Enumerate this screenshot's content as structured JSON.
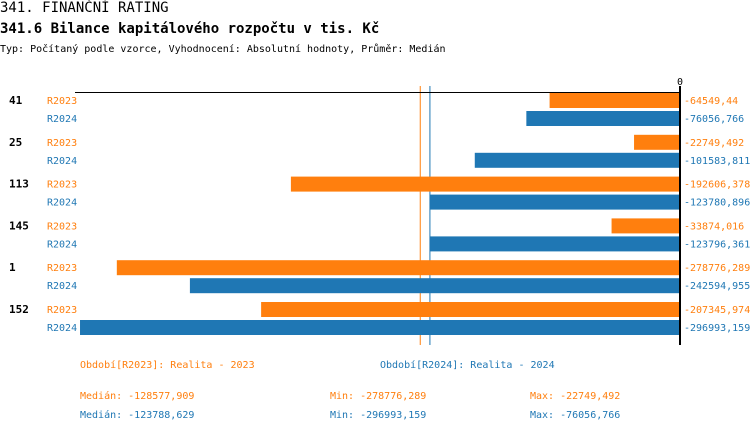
{
  "header": {
    "title": "341. FINANČNÍ RATING",
    "subtitle": "341.6 Bilance kapitálového rozpočtu v tis. Kč",
    "info": "Typ: Počítaný podle vzorce, Vyhodnocení: Absolutní hodnoty, Průměr: Medián"
  },
  "colors": {
    "R2023": "#ff7f0e",
    "R2024": "#1f77b4",
    "axis": "#000000"
  },
  "chart_data": {
    "type": "bar",
    "orientation": "horizontal",
    "xlim": [
      -297000,
      0
    ],
    "zero_label": "0",
    "categories": [
      "41",
      "25",
      "113",
      "145",
      "1",
      "152"
    ],
    "series": [
      {
        "name": "R2023",
        "values": [
          -64549.44,
          -22749.492,
          -192606.378,
          -33874.016,
          -278776.289,
          -207345.974
        ],
        "labels": [
          "-64549,44",
          "-22749,492",
          "-192606,378",
          "-33874,016",
          "-278776,289",
          "-207345,974"
        ],
        "median": -128577.909
      },
      {
        "name": "R2024",
        "values": [
          -76056.766,
          -101583.811,
          -123780.896,
          -123796.361,
          -242594.955,
          -296993.159
        ],
        "labels": [
          "-76056,766",
          "-101583,811",
          "-123780,896",
          "-123796,361",
          "-242594,955",
          "-296993,159"
        ],
        "median": -123788.629
      }
    ]
  },
  "footer": {
    "legend_2023": "Období[R2023]: Realita - 2023",
    "legend_2024": "Období[R2024]: Realita - 2024",
    "median_2023": "Medián: -128577,909",
    "min_2023": "Min: -278776,289",
    "max_2023": "Max: -22749,492",
    "median_2024": "Medián: -123788,629",
    "min_2024": "Min: -296993,159",
    "max_2024": "Max: -76056,766"
  }
}
